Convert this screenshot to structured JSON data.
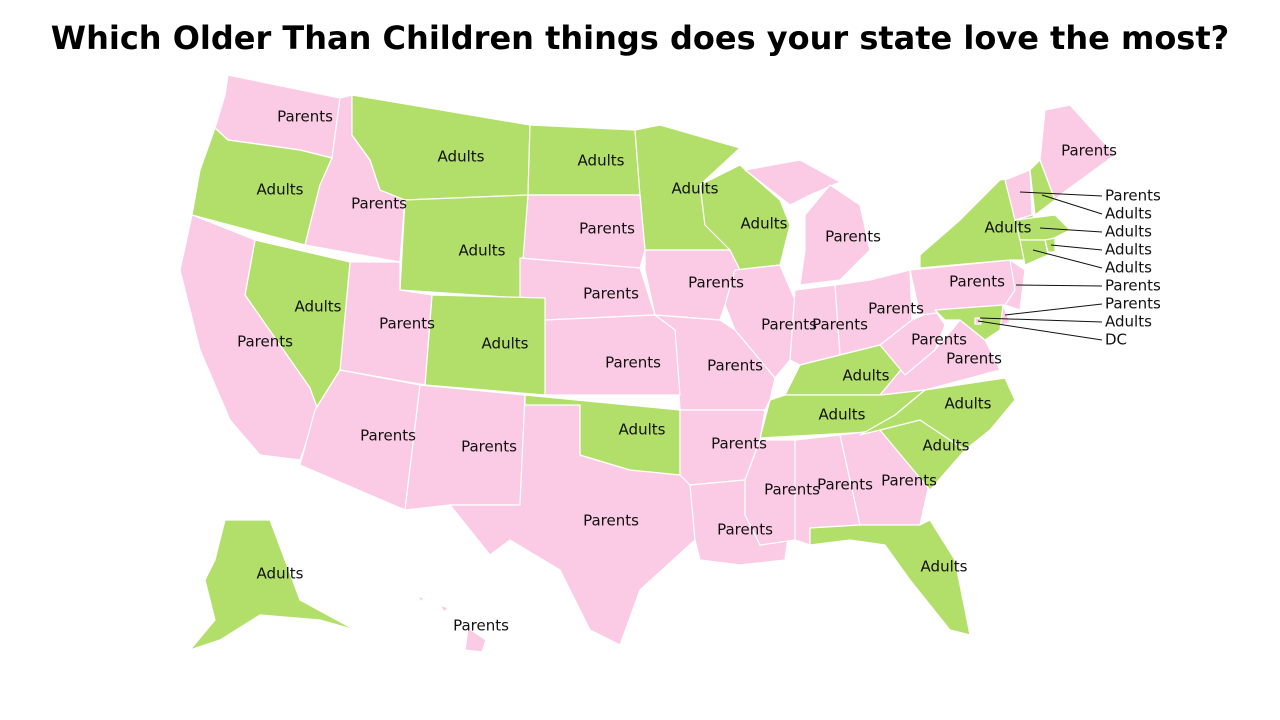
{
  "title": "Which Older Than Children things does your state love the most?",
  "states": [
    {
      "label": "Parents",
      "color": "#fbcbe5"
    },
    {
      "label": "Adults",
      "color": "#b2de6a"
    },
    {
      "label": "Parents",
      "color": "#fbcbe5"
    },
    {
      "label": "Adults",
      "color": "#b2de6a"
    },
    {
      "label": "Adults",
      "color": "#b2de6a"
    },
    {
      "label": "Adults",
      "color": "#b2de6a"
    },
    {
      "label": "Adults",
      "color": "#b2de6a"
    },
    {
      "label": "Parents",
      "color": "#fbcbe5"
    },
    {
      "label": "Parents",
      "color": "#fbcbe5"
    },
    {
      "label": "Adults",
      "color": "#b2de6a"
    },
    {
      "label": "Parents",
      "color": "#fbcbe5"
    },
    {
      "label": "Parents",
      "color": "#fbcbe5"
    },
    {
      "label": "Parents",
      "color": "#fbcbe5"
    },
    {
      "label": "Parents",
      "color": "#fbcbe5"
    },
    {
      "label": "Parents",
      "color": "#fbcbe5"
    },
    {
      "label": "Adults",
      "color": "#b2de6a"
    },
    {
      "label": "Adults",
      "color": "#b2de6a"
    },
    {
      "label": "Parents",
      "color": "#fbcbe5"
    },
    {
      "label": "Parents",
      "color": "#fbcbe5"
    },
    {
      "label": "Adults",
      "color": "#b2de6a"
    },
    {
      "label": "Parents",
      "color": "#fbcbe5"
    },
    {
      "label": "Adults",
      "color": "#b2de6a"
    },
    {
      "label": "Parents",
      "color": "#fbcbe5"
    },
    {
      "label": "Parents",
      "color": "#fbcbe5"
    },
    {
      "label": "Parents",
      "color": "#fbcbe5"
    },
    {
      "label": "Parents",
      "color": "#fbcbe5"
    },
    {
      "label": "Adults",
      "color": "#b2de6a"
    },
    {
      "label": "Parents",
      "color": "#fbcbe5"
    },
    {
      "label": "Parents",
      "color": "#fbcbe5"
    },
    {
      "label": "Parents",
      "color": "#fbcbe5"
    },
    {
      "label": "Parents",
      "color": "#fbcbe5"
    },
    {
      "label": "Parents",
      "color": "#fbcbe5"
    },
    {
      "label": "Adults",
      "color": "#b2de6a"
    },
    {
      "label": "Adults",
      "color": "#b2de6a"
    },
    {
      "label": "Adults",
      "color": "#b2de6a"
    },
    {
      "label": "Parents",
      "color": "#fbcbe5"
    },
    {
      "label": "Parents",
      "color": "#fbcbe5"
    },
    {
      "label": "Parents",
      "color": "#fbcbe5"
    },
    {
      "label": "Adults",
      "color": "#b2de6a"
    },
    {
      "label": "Parents",
      "color": "#fbcbe5"
    },
    {
      "label": "Parents",
      "color": "#fbcbe5"
    },
    {
      "label": "Adults",
      "color": "#b2de6a"
    },
    {
      "label": "DC",
      "color": "#fbcbe5"
    },
    {
      "label": "Parents",
      "color": "#fbcbe5"
    },
    {
      "label": "Adults",
      "color": "#b2de6a"
    },
    {
      "label": "Parents",
      "color": "#fbcbe5"
    },
    {
      "label": "Adults",
      "color": "#b2de6a"
    },
    {
      "label": "Adults",
      "color": "#b2de6a"
    },
    {
      "label": "Adults",
      "color": "#b2de6a"
    },
    {
      "label": "Adults",
      "color": "#b2de6a"
    },
    {
      "label": "Parents",
      "color": "#fbcbe5"
    }
  ]
}
